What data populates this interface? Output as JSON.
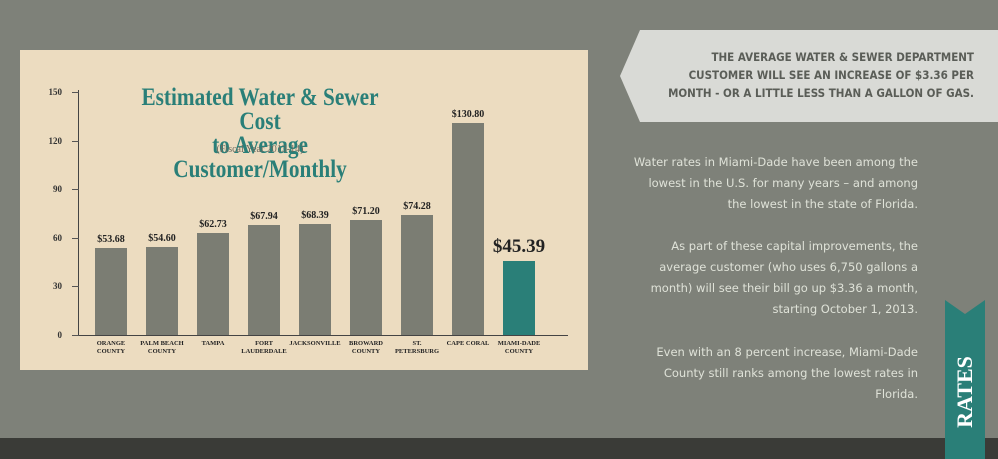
{
  "chart_data": {
    "type": "bar",
    "title": [
      "Estimated Water & Sewer Cost",
      "to Average Customer/Monthly"
    ],
    "subtitle": "(Fiscal Year 2013-14)",
    "categories": [
      "ORANGE COUNTY",
      "PALM BEACH COUNTY",
      "TAMPA",
      "FORT LAUDERDALE",
      "JACKSONVILLE",
      "BROWARD COUNTY",
      "ST. PETERSBURG",
      "CAPE CORAL",
      "MIAMI-DADE COUNTY"
    ],
    "values": [
      53.68,
      54.6,
      62.73,
      67.94,
      68.39,
      71.2,
      74.28,
      130.8,
      45.39
    ],
    "value_labels": [
      "$53.68",
      "$54.60",
      "$62.73",
      "$67.94",
      "$68.39",
      "$71.20",
      "$74.28",
      "$130.80",
      "$45.39"
    ],
    "colors": [
      "#7b7d73",
      "#7b7d73",
      "#7b7d73",
      "#7b7d73",
      "#7b7d73",
      "#7b7d73",
      "#7b7d73",
      "#7b7d73",
      "#2a7f78"
    ],
    "ylim": [
      0,
      150
    ],
    "yticks": [
      0,
      30,
      60,
      90,
      120,
      150
    ]
  },
  "callout": "THE AVERAGE WATER & SEWER DEPARTMENT CUSTOMER WILL SEE AN INCREASE OF $3.36 PER MONTH - OR A LITTLE LESS THAN A GALLON OF GAS.",
  "paragraphs": [
    "Water rates in Miami-Dade have been among the lowest in the U.S. for many years – and among the lowest in the state of Florida.",
    "As part of these capital improvements, the average customer (who uses 6,750 gallons a month) will see their bill go up $3.36 a month, starting October 1, 2013.",
    "Even with an 8 percent increase, Miami-Dade County still ranks among the lowest rates in Florida."
  ],
  "tab": "RATES"
}
